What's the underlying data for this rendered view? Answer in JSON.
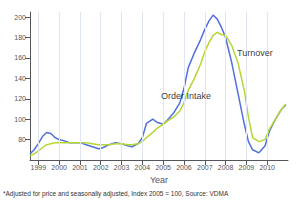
{
  "chart_data": {
    "type": "line",
    "xlabel": "Year",
    "footnote": "*Adjusted for price and seasonally adjusted, Index 2005 = 100, Source: VDMA",
    "grid": "x",
    "xlim": [
      1998.6,
      2011.0
    ],
    "xticks": [
      1999,
      2000,
      2001,
      2002,
      2003,
      2004,
      2005,
      2006,
      2007,
      2008,
      2009,
      2010
    ],
    "ylim": [
      60,
      205
    ],
    "yticks": [
      80,
      100,
      120,
      140,
      160,
      180,
      200
    ],
    "x": [
      1998.6,
      1998.8,
      1999.0,
      1999.2,
      1999.4,
      1999.6,
      1999.8,
      2000.0,
      2000.2,
      2000.5,
      2000.8,
      2001.0,
      2001.3,
      2001.6,
      2001.9,
      2002.1,
      2002.4,
      2002.7,
      2003.0,
      2003.3,
      2003.5,
      2003.8,
      2004.0,
      2004.2,
      2004.5,
      2004.7,
      2005.0,
      2005.2,
      2005.5,
      2005.8,
      2006.0,
      2006.2,
      2006.5,
      2006.8,
      2007.0,
      2007.2,
      2007.4,
      2007.6,
      2007.8,
      2008.0,
      2008.3,
      2008.6,
      2008.9,
      2009.1,
      2009.3,
      2009.6,
      2009.9,
      2010.1,
      2010.4,
      2010.7,
      2010.9
    ],
    "series": [
      {
        "values": [
          66,
          70,
          76,
          83,
          87,
          86,
          82,
          80,
          79,
          77,
          77,
          77,
          75,
          73,
          71,
          72,
          75,
          77,
          76,
          74,
          73,
          76,
          82,
          96,
          100,
          97,
          95,
          99,
          106,
          116,
          130,
          150,
          165,
          178,
          188,
          196,
          202,
          198,
          190,
          180,
          155,
          125,
          95,
          78,
          70,
          67,
          74,
          88,
          100,
          110,
          114
        ]
      },
      {
        "values": [
          64,
          66,
          69,
          72,
          75,
          76,
          77,
          77,
          77,
          77,
          77,
          77,
          77,
          76,
          75,
          75,
          75,
          76,
          76,
          75,
          75,
          76,
          78,
          82,
          87,
          91,
          95,
          98,
          102,
          108,
          116,
          128,
          140,
          154,
          166,
          175,
          182,
          185,
          183,
          182,
          172,
          155,
          128,
          102,
          82,
          78,
          80,
          90,
          100,
          110,
          115
        ]
      }
    ],
    "annotations": [
      {
        "text": "Order Intake",
        "x": 2004.9,
        "y": 118
      },
      {
        "text": "Turnover",
        "x": 2008.55,
        "y": 160
      }
    ]
  }
}
